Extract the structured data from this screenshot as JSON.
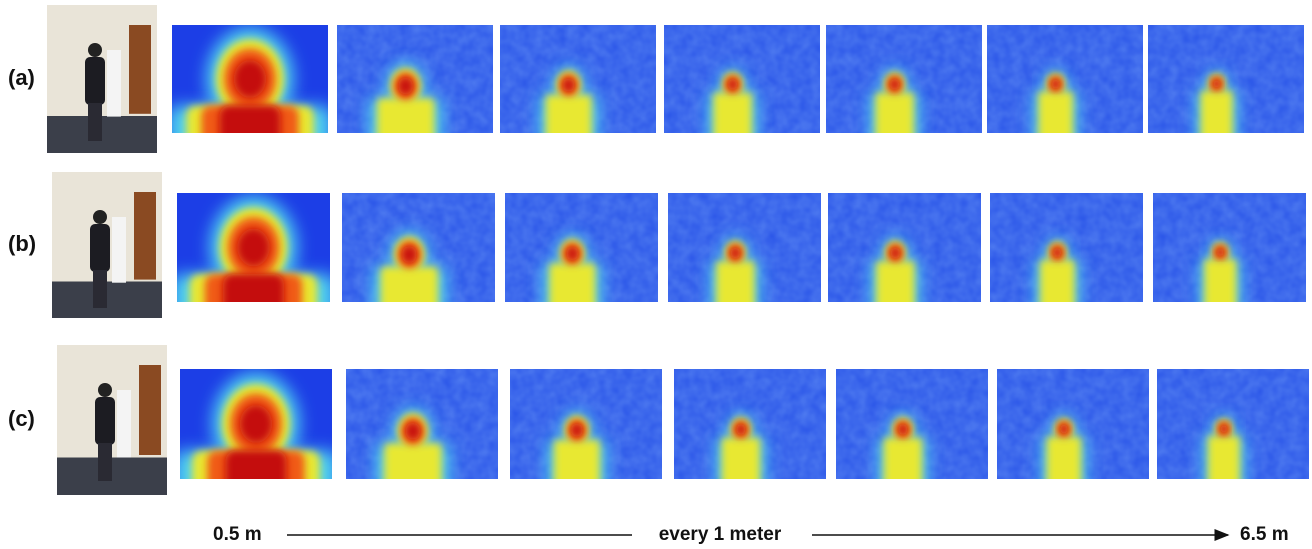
{
  "rows": [
    {
      "label": "(a)"
    },
    {
      "label": "(b)"
    },
    {
      "label": "(c)"
    }
  ],
  "distance": {
    "start": "0.5 m",
    "middle": "every 1 meter",
    "end": "6.5 m"
  }
}
